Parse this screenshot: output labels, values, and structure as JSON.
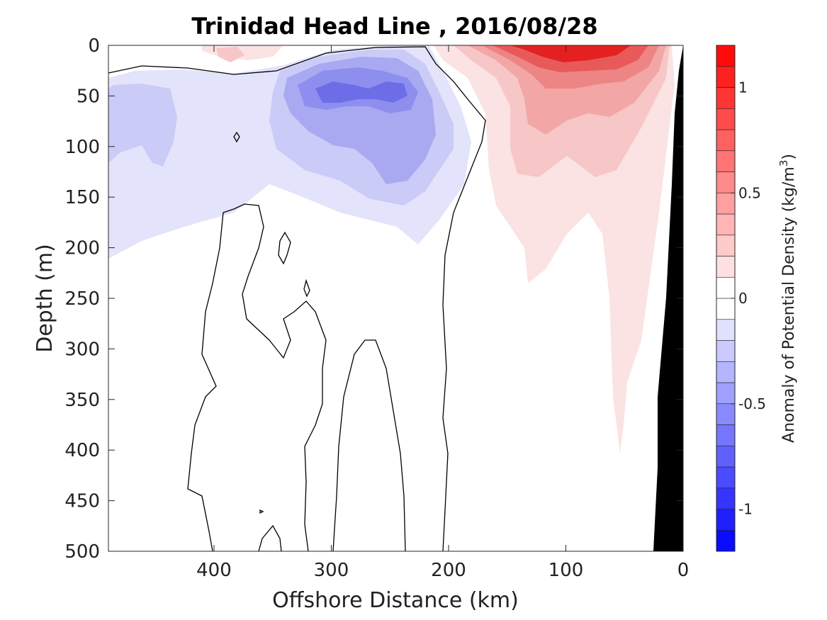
{
  "chart_data": {
    "type": "contour",
    "title": "Trinidad Head Line , 2016/08/28",
    "xlabel": "Offshore Distance (km)",
    "ylabel": "Depth (m)",
    "x_ticks": [
      400,
      300,
      200,
      100,
      0
    ],
    "y_ticks": [
      0,
      50,
      100,
      150,
      200,
      250,
      300,
      350,
      400,
      450,
      500
    ],
    "xlim": [
      490,
      0
    ],
    "ylim": [
      0,
      500
    ],
    "x_reversed": true,
    "y_reversed": true,
    "colorbar": {
      "label_main": "Anomaly of Potential Density (kg/m",
      "label_sup": "3",
      "label_end": ")",
      "range": [
        -1.2,
        1.2
      ],
      "step": 0.1,
      "ticks": [
        {
          "value": 1,
          "label": "1"
        },
        {
          "value": 0.5,
          "label": "0.5"
        },
        {
          "value": 0,
          "label": "0"
        },
        {
          "value": -0.5,
          "label": "-0.5"
        },
        {
          "value": -1,
          "label": "-1"
        }
      ]
    },
    "anomaly_features": [
      {
        "sign": "positive",
        "x_range_km": [
          0,
          200
        ],
        "depth_range_m": [
          0,
          400
        ],
        "peak_value": 1.2,
        "peak_x_km": 95,
        "peak_depth_m": 5
      },
      {
        "sign": "negative",
        "x_range_km": [
          200,
          490
        ],
        "depth_range_m": [
          0,
          210
        ],
        "peak_value": -0.7,
        "peak_x_km": 250,
        "peak_depth_m": 40
      }
    ]
  }
}
